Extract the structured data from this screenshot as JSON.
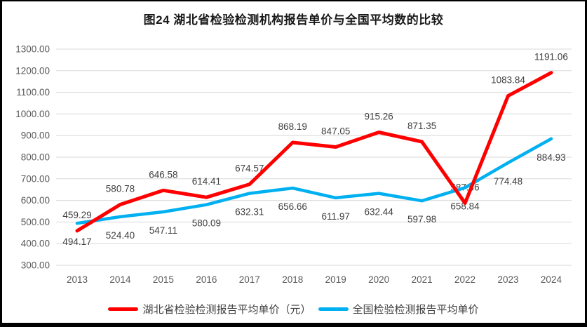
{
  "title": "图24 湖北省检验检测机构报告单价与全国平均数的比较",
  "colors": {
    "hubei_line": "#ff0000",
    "national_line": "#00b0f0",
    "gridline": "#d9d9d9",
    "axis_text": "#595959",
    "data_label_text": "#404040",
    "frame_border": "#000000"
  },
  "chart_data": {
    "type": "line",
    "x": [
      "2013",
      "2014",
      "2015",
      "2016",
      "2017",
      "2018",
      "2019",
      "2020",
      "2021",
      "2022",
      "2023",
      "2024"
    ],
    "series": [
      {
        "name": "湖北省检验检测报告平均单价（元）",
        "color": "#ff0000",
        "label_position": "above",
        "values": [
          459.29,
          580.78,
          646.58,
          614.41,
          674.57,
          868.19,
          847.05,
          915.26,
          871.35,
          587.46,
          1083.84,
          1191.06
        ]
      },
      {
        "name": "全国检验检测报告平均单价",
        "color": "#00b0f0",
        "label_position": "below",
        "values": [
          494.17,
          524.4,
          547.11,
          580.09,
          632.31,
          656.66,
          611.97,
          632.44,
          597.98,
          658.84,
          774.48,
          884.93
        ]
      }
    ],
    "title": "图24 湖北省检验检测机构报告单价与全国平均数的比较",
    "xlabel": "",
    "ylabel": "",
    "ylim": [
      300,
      1300
    ],
    "ytick_step": 100,
    "ytick_labels": [
      "300.00",
      "400.00",
      "500.00",
      "600.00",
      "700.00",
      "800.00",
      "900.00",
      "1000.00",
      "1100.00",
      "1200.00",
      "1300.00"
    ],
    "value_decimals": 2,
    "grid": true,
    "legend_position": "bottom"
  }
}
